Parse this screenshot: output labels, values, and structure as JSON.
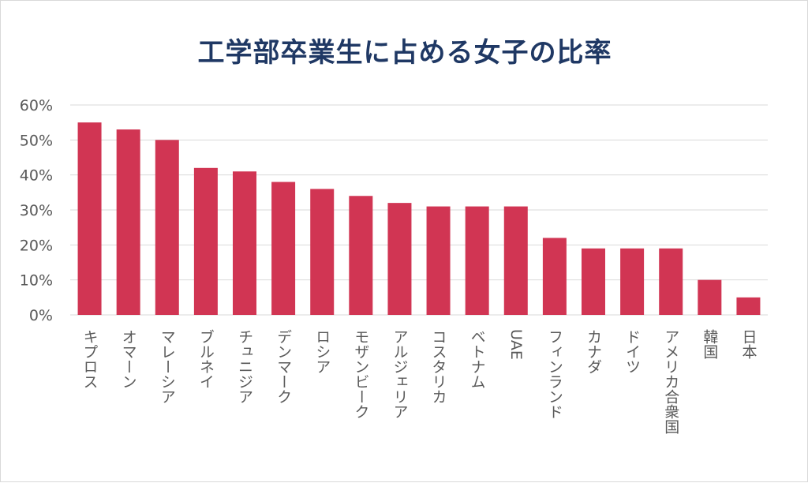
{
  "chart_data": {
    "type": "bar",
    "title": "工学部卒業生に占める女子の比率",
    "categories": [
      "キプロス",
      "オマーン",
      "マレーシア",
      "ブルネイ",
      "チュニジア",
      "デンマーク",
      "ロシア",
      "モザンビーク",
      "アルジェリア",
      "コスタリカ",
      "ベトナム",
      "UAE",
      "フィンランド",
      "カナダ",
      "ドイツ",
      "アメリカ合衆国",
      "韓国",
      "日本"
    ],
    "values": [
      55,
      53,
      50,
      42,
      41,
      38,
      36,
      34,
      32,
      31,
      31,
      31,
      22,
      19,
      19,
      19,
      10,
      5
    ],
    "ylim": [
      0,
      60
    ],
    "yticks": [
      "0%",
      "10%",
      "20%",
      "30%",
      "40%",
      "50%",
      "60%"
    ],
    "grid": true,
    "bar_color": "#d13553",
    "grid_color": "#d9d9d9"
  }
}
